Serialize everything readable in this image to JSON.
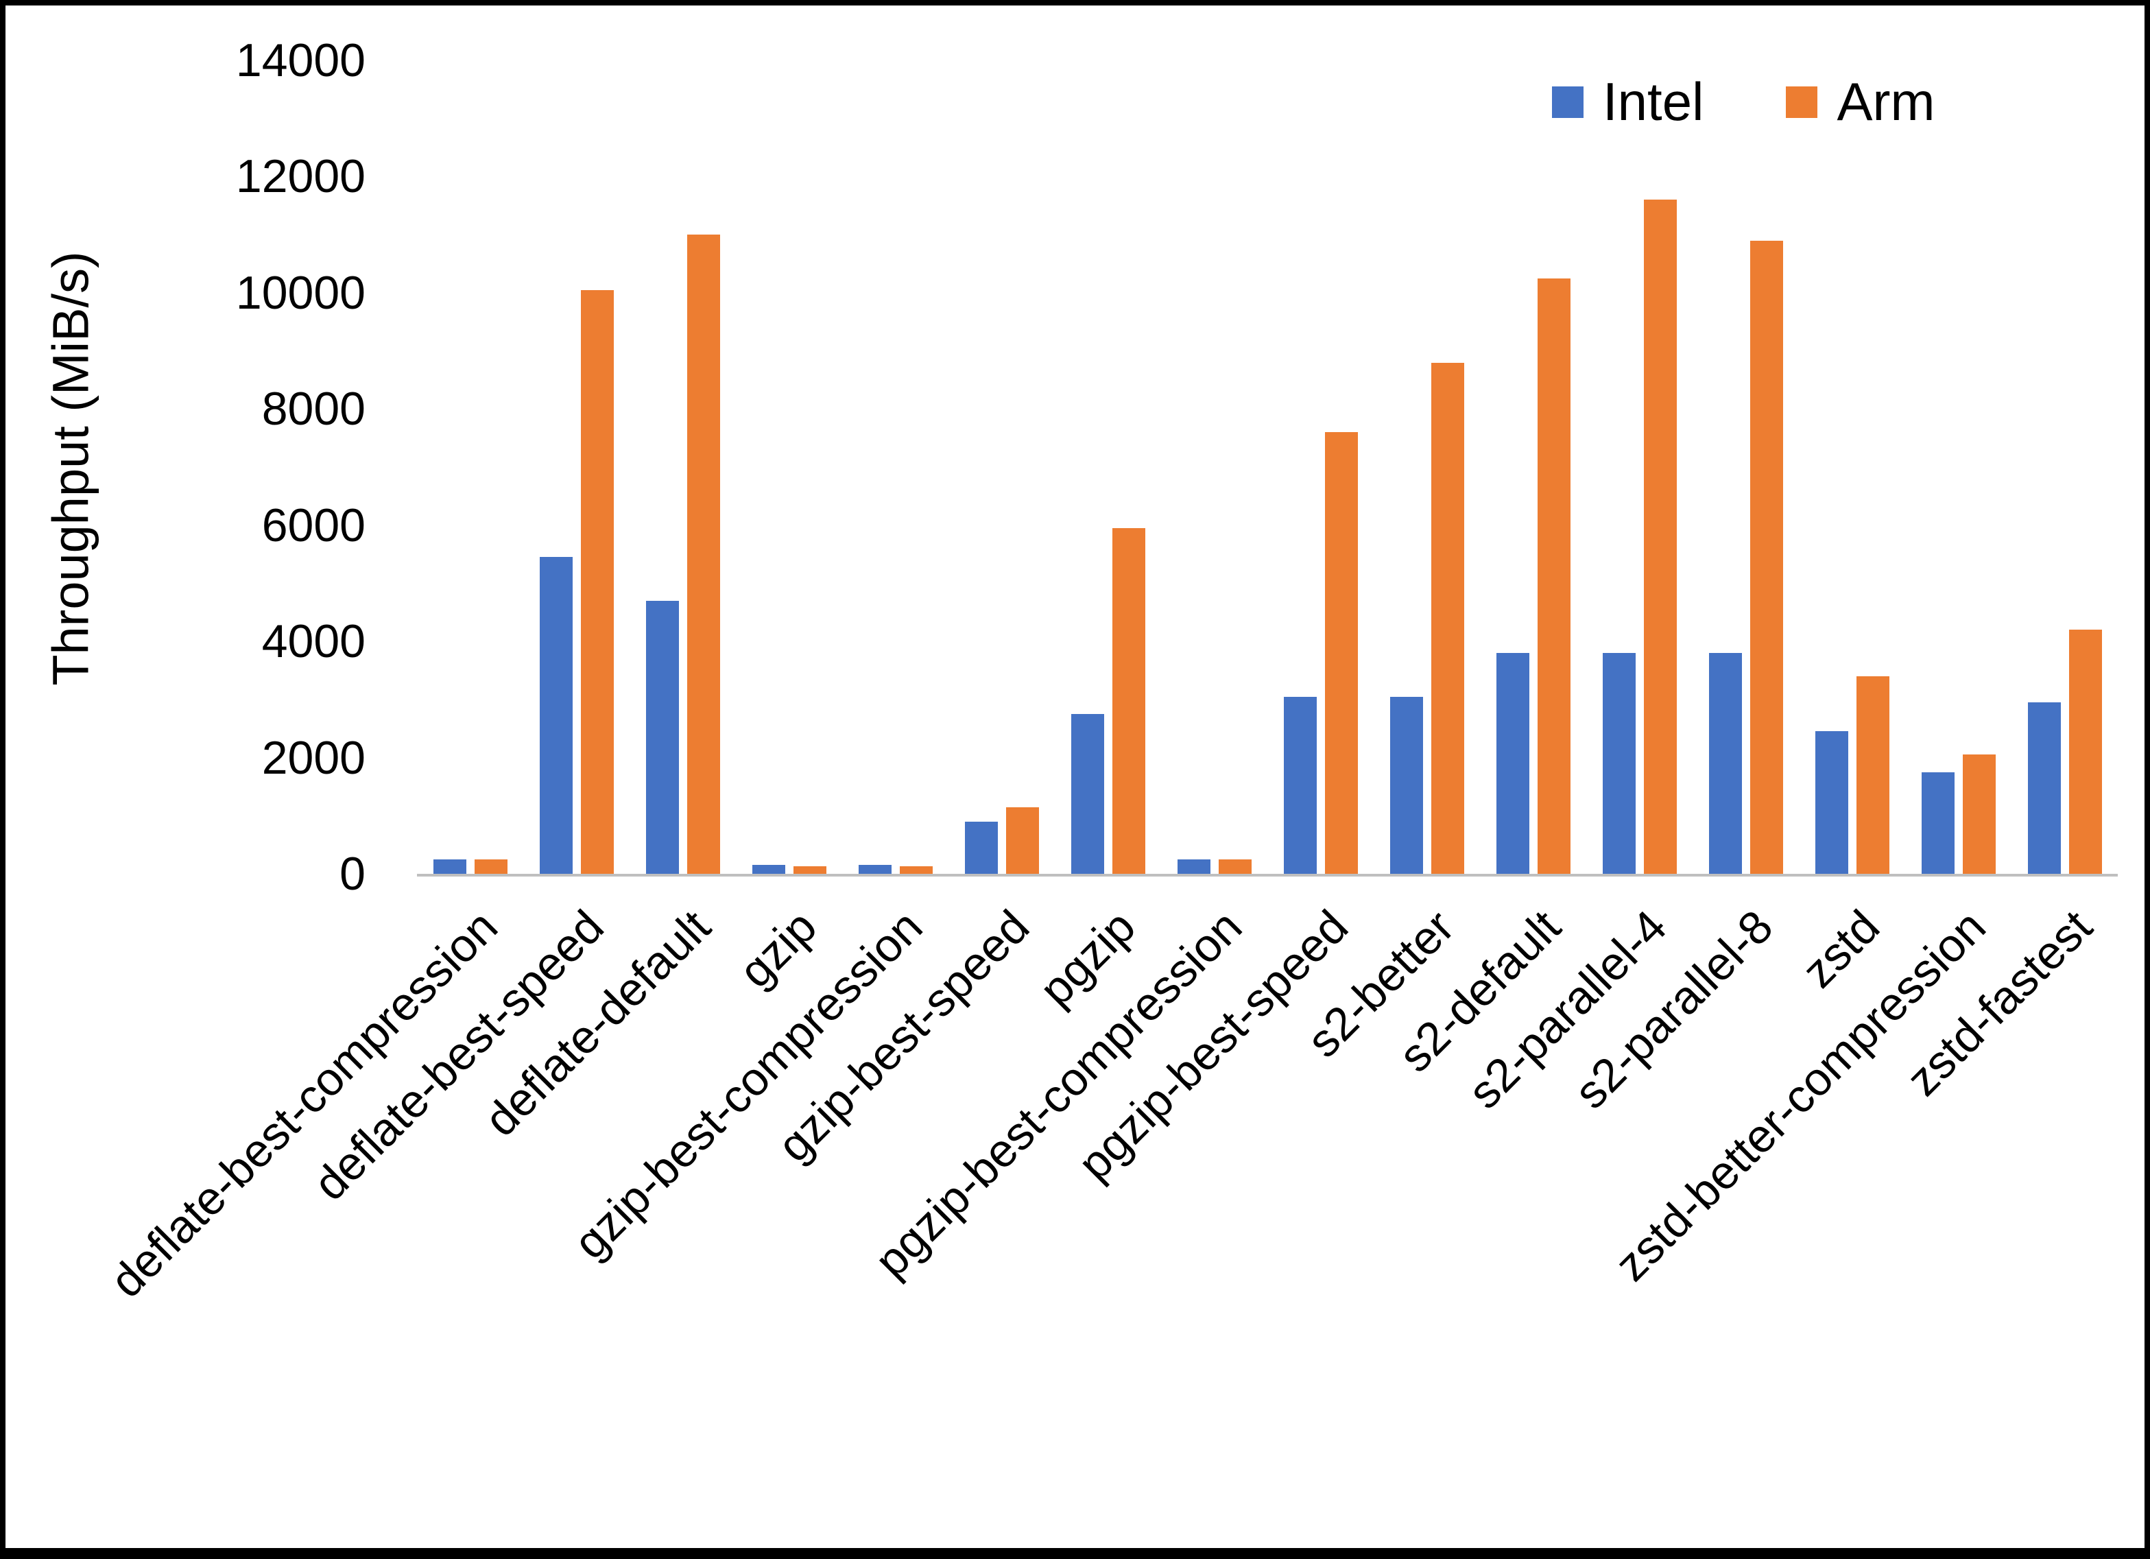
{
  "chart_data": {
    "type": "bar",
    "title": "",
    "xlabel": "",
    "ylabel": "Throughput (MiB/s)",
    "ylim": [
      0,
      14000
    ],
    "ytick_step": 2000,
    "grid": false,
    "legend_position": "top-right",
    "categories": [
      "deflate-best-compression",
      "deflate-best-speed",
      "deflate-default",
      "gzip",
      "gzip-best-compression",
      "gzip-best-speed",
      "pgzip",
      "pgzip-best-compression",
      "pgzip-best-speed",
      "s2-better",
      "s2-default",
      "s2-parallel-4",
      "s2-parallel-8",
      "zstd",
      "zstd-better-compression",
      "zstd-fastest"
    ],
    "series": [
      {
        "name": "Intel",
        "color": "#4472C4",
        "values": [
          250,
          5450,
          4700,
          150,
          150,
          900,
          2750,
          250,
          3050,
          3050,
          3800,
          3800,
          3800,
          2450,
          1750,
          2950
        ]
      },
      {
        "name": "Arm",
        "color": "#ED7D31",
        "values": [
          250,
          10050,
          11000,
          130,
          130,
          1150,
          5950,
          250,
          7600,
          8800,
          10250,
          11600,
          10900,
          3400,
          2050,
          4200
        ]
      }
    ]
  }
}
